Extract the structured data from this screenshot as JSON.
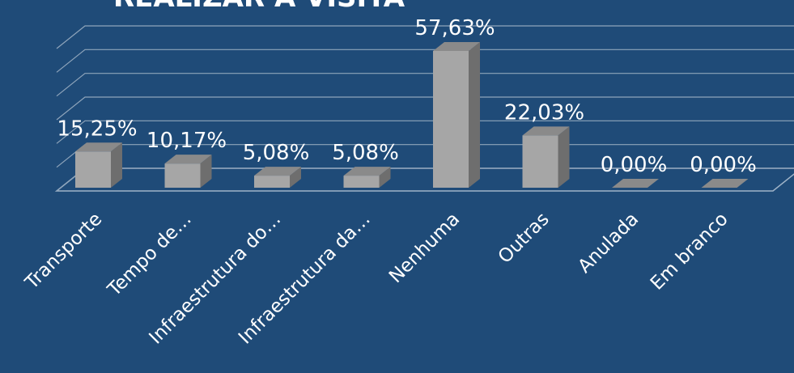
{
  "chart_data": {
    "type": "bar",
    "title": "REALIZAR A VISITA",
    "categories": [
      "Transporte",
      "Tempo de…",
      "Infraestrutura do…",
      "Infraestrutura da…",
      "Nenhuma",
      "Outras",
      "Anulada",
      "Em branco"
    ],
    "values": [
      15.25,
      10.17,
      5.08,
      5.08,
      57.63,
      22.03,
      0,
      0
    ],
    "value_labels": [
      "15,25%",
      "10,17%",
      "5,08%",
      "5,08%",
      "57,63%",
      "22,03%",
      "0,00%",
      "0,00%"
    ],
    "color": "#a6a6a6",
    "ylim": [
      0,
      60
    ],
    "yticks": [
      0,
      10,
      20,
      30,
      40,
      50,
      60
    ],
    "grid": true
  }
}
